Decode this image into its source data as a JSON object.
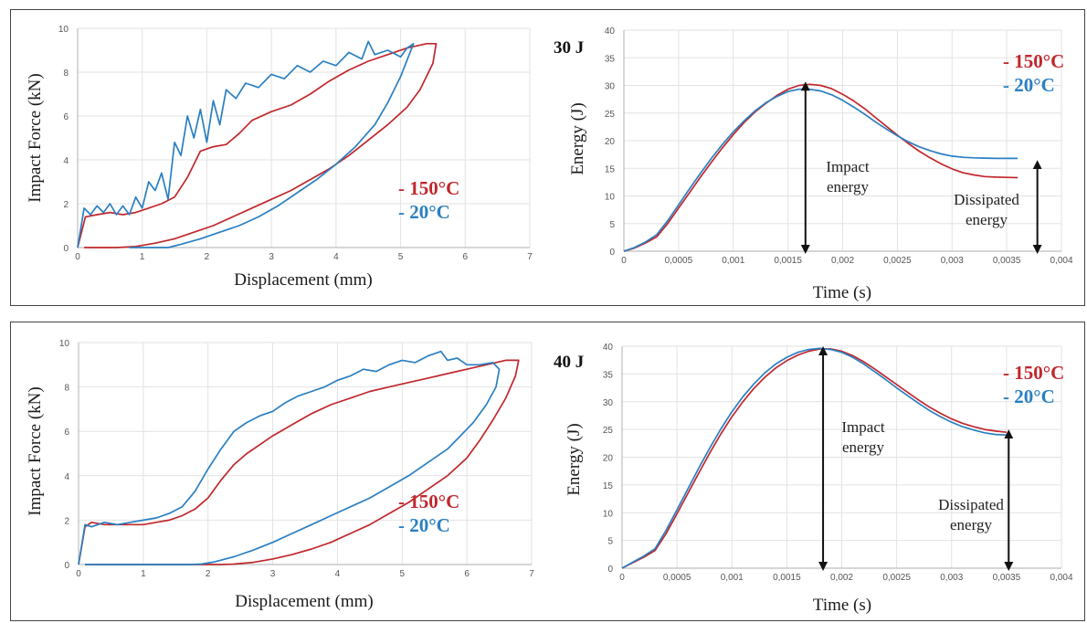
{
  "colors": {
    "hot": "#c0272d",
    "cold": "#2a7fc1",
    "grid": "#e2e2e2",
    "axis": "#bdbdbd"
  },
  "chart_data": [
    {
      "id": "force-30",
      "type": "line",
      "xlabel": "Displacement (mm)",
      "ylabel": "Impact Force (kN)",
      "xlim": [
        0,
        7
      ],
      "ylim": [
        0,
        10
      ],
      "xticks": [
        0,
        1,
        2,
        3,
        4,
        5,
        6,
        7
      ],
      "yticks": [
        0,
        2,
        4,
        6,
        8,
        10
      ],
      "xtick_labels": [
        "0",
        "1",
        "2",
        "3",
        "4",
        "5",
        "6",
        "7"
      ],
      "ytick_labels": [
        "0",
        "2",
        "4",
        "6",
        "8",
        "10"
      ],
      "legend": [
        "150°C",
        "20°C"
      ],
      "series": [
        {
          "name": "150°C",
          "color": "hot",
          "x": [
            0,
            0.12,
            0.3,
            0.5,
            0.7,
            0.9,
            1.1,
            1.3,
            1.5,
            1.7,
            1.9,
            2.1,
            2.3,
            2.5,
            2.7,
            3.0,
            3.3,
            3.6,
            3.9,
            4.2,
            4.5,
            4.8,
            5.1,
            5.4,
            5.55,
            5.5,
            5.3,
            5.1,
            4.8,
            4.5,
            4.2,
            3.9,
            3.6,
            3.3,
            3.0,
            2.7,
            2.4,
            2.1,
            1.8,
            1.5,
            1.2,
            0.9,
            0.6,
            0.3,
            0.1
          ],
          "y": [
            0,
            1.4,
            1.5,
            1.6,
            1.5,
            1.6,
            1.8,
            2.0,
            2.3,
            3.2,
            4.4,
            4.6,
            4.7,
            5.2,
            5.8,
            6.2,
            6.5,
            7.0,
            7.6,
            8.1,
            8.5,
            8.8,
            9.1,
            9.3,
            9.3,
            8.4,
            7.2,
            6.4,
            5.6,
            4.9,
            4.2,
            3.6,
            3.1,
            2.6,
            2.2,
            1.8,
            1.4,
            1.0,
            0.7,
            0.4,
            0.2,
            0.05,
            0,
            0,
            0
          ]
        },
        {
          "name": "20°C",
          "color": "cold",
          "x": [
            0,
            0.1,
            0.2,
            0.3,
            0.4,
            0.5,
            0.6,
            0.7,
            0.8,
            0.9,
            1.0,
            1.1,
            1.2,
            1.3,
            1.4,
            1.5,
            1.6,
            1.7,
            1.8,
            1.9,
            2.0,
            2.1,
            2.2,
            2.3,
            2.45,
            2.6,
            2.8,
            3.0,
            3.2,
            3.4,
            3.6,
            3.8,
            4.0,
            4.2,
            4.4,
            4.5,
            4.6,
            4.8,
            5.0,
            5.1,
            5.2,
            5.0,
            4.8,
            4.6,
            4.3,
            4.0,
            3.7,
            3.4,
            3.1,
            2.8,
            2.5,
            2.2,
            1.9,
            1.6,
            1.4,
            1.2,
            1.0,
            0.8
          ],
          "y": [
            0,
            1.8,
            1.5,
            1.9,
            1.6,
            2.0,
            1.5,
            1.9,
            1.5,
            2.3,
            1.8,
            3.0,
            2.6,
            3.4,
            2.2,
            4.8,
            4.2,
            6.0,
            5.0,
            6.3,
            4.8,
            6.7,
            5.6,
            7.2,
            6.8,
            7.5,
            7.3,
            7.9,
            7.7,
            8.3,
            8.0,
            8.5,
            8.3,
            8.9,
            8.6,
            9.4,
            8.8,
            9.0,
            8.7,
            9.1,
            9.3,
            7.8,
            6.6,
            5.6,
            4.6,
            3.8,
            3.1,
            2.5,
            1.9,
            1.4,
            1.0,
            0.7,
            0.4,
            0.15,
            0,
            0,
            0,
            0
          ]
        }
      ]
    },
    {
      "id": "energy-30",
      "type": "line",
      "title": "30 J",
      "xlabel": "Time (s)",
      "ylabel": "Energy (J)",
      "xlim": [
        0,
        0.004
      ],
      "ylim": [
        0,
        40
      ],
      "xticks": [
        0,
        0.0005,
        0.001,
        0.0015,
        0.002,
        0.0025,
        0.003,
        0.0035,
        0.004
      ],
      "yticks": [
        0,
        5,
        10,
        15,
        20,
        25,
        30,
        35,
        40
      ],
      "xtick_labels": [
        "0",
        "0,0005",
        "0,001",
        "0,0015",
        "0,002",
        "0,0025",
        "0,003",
        "0,0035",
        "0,004"
      ],
      "ytick_labels": [
        "0",
        "5",
        "10",
        "15",
        "20",
        "25",
        "30",
        "35",
        "40"
      ],
      "legend": [
        "150°C",
        "20°C"
      ],
      "annotations": [
        {
          "text1": "Impact",
          "text2": "energy",
          "arrow_x": 0.00166,
          "arrow_y": [
            0,
            30.2
          ]
        },
        {
          "text1": "Dissipated",
          "text2": "energy",
          "arrow_x": 0.00378,
          "arrow_y": [
            0,
            16
          ]
        }
      ],
      "series": [
        {
          "name": "150°C",
          "color": "hot",
          "x": [
            0,
            0.0001,
            0.0002,
            0.0003,
            0.0004,
            0.0005,
            0.0006,
            0.0007,
            0.0008,
            0.0009,
            0.001,
            0.0011,
            0.0012,
            0.0013,
            0.0014,
            0.0015,
            0.0016,
            0.0017,
            0.0018,
            0.0019,
            0.002,
            0.0021,
            0.0022,
            0.0023,
            0.0024,
            0.0025,
            0.0026,
            0.0027,
            0.0028,
            0.0029,
            0.003,
            0.0031,
            0.0032,
            0.0033,
            0.0034,
            0.0035,
            0.0036
          ],
          "y": [
            0,
            0.6,
            1.5,
            2.6,
            5.0,
            7.8,
            10.6,
            13.4,
            16.1,
            18.7,
            21.1,
            23.3,
            25.2,
            26.8,
            28.2,
            29.3,
            30.0,
            30.2,
            30.0,
            29.4,
            28.4,
            27.2,
            25.8,
            24.2,
            22.6,
            21.0,
            19.5,
            18.1,
            16.9,
            15.8,
            14.9,
            14.2,
            13.8,
            13.5,
            13.4,
            13.35,
            13.3
          ]
        },
        {
          "name": "20°C",
          "color": "cold",
          "x": [
            0,
            0.0001,
            0.0002,
            0.0003,
            0.0004,
            0.0005,
            0.0006,
            0.0007,
            0.0008,
            0.0009,
            0.001,
            0.0011,
            0.0012,
            0.0013,
            0.0014,
            0.0015,
            0.0016,
            0.0017,
            0.0018,
            0.0019,
            0.002,
            0.0021,
            0.0022,
            0.0023,
            0.0024,
            0.0025,
            0.0026,
            0.0027,
            0.0028,
            0.0029,
            0.003,
            0.0031,
            0.0032,
            0.0033,
            0.0034,
            0.0035,
            0.0036
          ],
          "y": [
            0,
            0.7,
            1.7,
            3.0,
            5.5,
            8.4,
            11.3,
            14.1,
            16.8,
            19.3,
            21.6,
            23.6,
            25.4,
            26.9,
            28.0,
            28.9,
            29.3,
            29.3,
            29.0,
            28.3,
            27.3,
            26.1,
            24.8,
            23.4,
            22.1,
            20.9,
            19.8,
            18.9,
            18.2,
            17.6,
            17.2,
            17.0,
            16.9,
            16.85,
            16.8,
            16.8,
            16.8
          ]
        }
      ]
    },
    {
      "id": "force-40",
      "type": "line",
      "xlabel": "Displacement (mm)",
      "ylabel": "Impact Force (kN)",
      "xlim": [
        0,
        7
      ],
      "ylim": [
        0,
        10
      ],
      "xticks": [
        0,
        1,
        2,
        3,
        4,
        5,
        6,
        7
      ],
      "yticks": [
        0,
        2,
        4,
        6,
        8,
        10
      ],
      "xtick_labels": [
        "0",
        "1",
        "2",
        "3",
        "4",
        "5",
        "6",
        "7"
      ],
      "ytick_labels": [
        "0",
        "2",
        "4",
        "6",
        "8",
        "10"
      ],
      "legend": [
        "150°C",
        "20°C"
      ],
      "series": [
        {
          "name": "150°C",
          "color": "hot",
          "x": [
            0,
            0.1,
            0.2,
            0.4,
            0.6,
            0.8,
            1.0,
            1.2,
            1.4,
            1.6,
            1.8,
            2.0,
            2.2,
            2.4,
            2.6,
            2.8,
            3.0,
            3.3,
            3.6,
            3.9,
            4.2,
            4.5,
            4.8,
            5.1,
            5.4,
            5.7,
            6.0,
            6.3,
            6.6,
            6.8,
            6.75,
            6.6,
            6.4,
            6.2,
            6.0,
            5.7,
            5.4,
            5.1,
            4.8,
            4.5,
            4.2,
            3.9,
            3.6,
            3.3,
            3.0,
            2.7,
            2.4,
            2.2,
            2.0,
            1.5,
            1.0,
            0.5,
            0.1
          ],
          "y": [
            0,
            1.7,
            1.9,
            1.8,
            1.8,
            1.8,
            1.8,
            1.9,
            2.0,
            2.2,
            2.5,
            3.0,
            3.8,
            4.5,
            5.0,
            5.4,
            5.8,
            6.3,
            6.8,
            7.2,
            7.5,
            7.8,
            8.0,
            8.2,
            8.4,
            8.6,
            8.8,
            9.0,
            9.2,
            9.2,
            8.5,
            7.5,
            6.5,
            5.6,
            4.8,
            4.0,
            3.4,
            2.8,
            2.3,
            1.8,
            1.4,
            1.0,
            0.7,
            0.45,
            0.25,
            0.1,
            0.02,
            0,
            0,
            0,
            0,
            0,
            0
          ]
        },
        {
          "name": "20°C",
          "color": "cold",
          "x": [
            0,
            0.1,
            0.2,
            0.4,
            0.6,
            0.8,
            1.0,
            1.2,
            1.4,
            1.6,
            1.8,
            2.0,
            2.2,
            2.4,
            2.6,
            2.8,
            3.0,
            3.2,
            3.4,
            3.6,
            3.8,
            4.0,
            4.2,
            4.4,
            4.6,
            4.8,
            5.0,
            5.2,
            5.4,
            5.6,
            5.7,
            5.85,
            6.0,
            6.2,
            6.4,
            6.5,
            6.45,
            6.3,
            6.1,
            5.9,
            5.7,
            5.4,
            5.1,
            4.8,
            4.5,
            4.2,
            3.9,
            3.6,
            3.3,
            3.0,
            2.7,
            2.4,
            2.1,
            1.9,
            1.7,
            1.2,
            0.6,
            0.1
          ],
          "y": [
            0,
            1.8,
            1.7,
            1.9,
            1.8,
            1.9,
            2.0,
            2.1,
            2.3,
            2.6,
            3.3,
            4.3,
            5.2,
            6.0,
            6.4,
            6.7,
            6.9,
            7.3,
            7.6,
            7.8,
            8.0,
            8.3,
            8.5,
            8.8,
            8.7,
            9.0,
            9.2,
            9.1,
            9.4,
            9.6,
            9.2,
            9.3,
            9.0,
            9.0,
            9.1,
            8.8,
            8.0,
            7.2,
            6.4,
            5.8,
            5.2,
            4.6,
            4.0,
            3.5,
            3.0,
            2.6,
            2.2,
            1.8,
            1.4,
            1.0,
            0.65,
            0.35,
            0.12,
            0.02,
            0,
            0,
            0,
            0
          ]
        }
      ]
    },
    {
      "id": "energy-40",
      "type": "line",
      "title": "40 J",
      "xlabel": "Time (s)",
      "ylabel": "Energy (J)",
      "xlim": [
        0,
        0.004
      ],
      "ylim": [
        0,
        40
      ],
      "xticks": [
        0,
        0.0005,
        0.001,
        0.0015,
        0.002,
        0.0025,
        0.003,
        0.0035,
        0.004
      ],
      "yticks": [
        0,
        5,
        10,
        15,
        20,
        25,
        30,
        35,
        40
      ],
      "xtick_labels": [
        "0",
        "0,0005",
        "0,001",
        "0,0015",
        "0,002",
        "0,0025",
        "0,003",
        "0,0035",
        "0,004"
      ],
      "ytick_labels": [
        "0",
        "5",
        "10",
        "15",
        "20",
        "25",
        "30",
        "35",
        "40"
      ],
      "legend": [
        "150°C",
        "20°C"
      ],
      "annotations": [
        {
          "text1": "Impact",
          "text2": "energy",
          "arrow_x": 0.00183,
          "arrow_y": [
            0,
            39.5
          ]
        },
        {
          "text1": "Dissipated",
          "text2": "energy",
          "arrow_x": 0.00352,
          "arrow_y": [
            0,
            24.5
          ]
        }
      ],
      "series": [
        {
          "name": "150°C",
          "color": "hot",
          "x": [
            0,
            0.0001,
            0.0002,
            0.0003,
            0.0004,
            0.0005,
            0.0006,
            0.0007,
            0.0008,
            0.0009,
            0.001,
            0.0011,
            0.0012,
            0.0013,
            0.0014,
            0.0015,
            0.0016,
            0.0017,
            0.0018,
            0.0019,
            0.002,
            0.0021,
            0.0022,
            0.0023,
            0.0024,
            0.0025,
            0.0026,
            0.0027,
            0.0028,
            0.0029,
            0.003,
            0.0031,
            0.0032,
            0.0033,
            0.0034,
            0.0035
          ],
          "y": [
            0,
            1.0,
            2.0,
            3.2,
            6.2,
            9.8,
            13.5,
            17.2,
            20.8,
            24.2,
            27.3,
            30.0,
            32.4,
            34.4,
            36.1,
            37.4,
            38.4,
            39.1,
            39.5,
            39.5,
            39.1,
            38.3,
            37.2,
            35.9,
            34.5,
            33.1,
            31.7,
            30.3,
            29.0,
            27.9,
            26.9,
            26.1,
            25.5,
            25.0,
            24.7,
            24.5
          ]
        },
        {
          "name": "20°C",
          "color": "cold",
          "x": [
            0,
            0.0001,
            0.0002,
            0.0003,
            0.0004,
            0.0005,
            0.0006,
            0.0007,
            0.0008,
            0.0009,
            0.001,
            0.0011,
            0.0012,
            0.0013,
            0.0014,
            0.0015,
            0.0016,
            0.0017,
            0.0018,
            0.0019,
            0.002,
            0.0021,
            0.0022,
            0.0023,
            0.0024,
            0.0025,
            0.0026,
            0.0027,
            0.0028,
            0.0029,
            0.003,
            0.0031,
            0.0032,
            0.0033,
            0.0034,
            0.0035
          ],
          "y": [
            0,
            1.1,
            2.2,
            3.5,
            6.8,
            10.5,
            14.3,
            18.1,
            21.7,
            25.1,
            28.2,
            30.9,
            33.2,
            35.2,
            36.8,
            38.0,
            38.9,
            39.4,
            39.6,
            39.4,
            38.9,
            38.0,
            36.8,
            35.4,
            34.0,
            32.5,
            31.1,
            29.7,
            28.4,
            27.3,
            26.3,
            25.5,
            24.9,
            24.4,
            24.1,
            24.0
          ]
        }
      ]
    }
  ]
}
